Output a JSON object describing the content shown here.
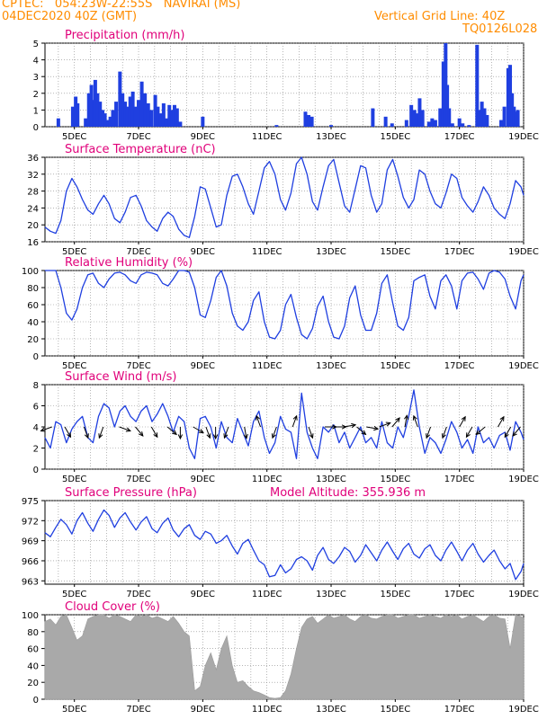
{
  "header": {
    "station": "CPTEC:   054:23W-22:55S   NAVIRAI (MS)",
    "run_time": "04DEC2020 40Z (GMT)",
    "grid_note": "Vertical Grid Line: 40Z",
    "code": "TQ0126L028"
  },
  "colors": {
    "header_text": "#ff8c00",
    "panel_title": "#e0007a",
    "series_line": "#1f3fe0",
    "bars": "#1f3fe0",
    "cloud_fill": "#a9a9a9",
    "wind_arrow": "#000000",
    "grid": "#888888"
  },
  "x_axis": {
    "tick_labels": [
      "5DEC",
      "7DEC",
      "9DEC",
      "11DEC",
      "13DEC",
      "15DEC",
      "17DEC",
      "19DEC"
    ],
    "range_days": [
      4.083,
      19.0
    ]
  },
  "chart_data": [
    {
      "id": "precip",
      "type": "bar",
      "title": "Precipitation (mm/h)",
      "ylim": [
        0,
        5
      ],
      "yticks": [
        0,
        1,
        2,
        3,
        4,
        5
      ],
      "grid": true,
      "x_day": [
        4.5,
        4.95,
        5.04,
        5.1,
        5.35,
        5.45,
        5.53,
        5.6,
        5.65,
        5.72,
        5.8,
        5.88,
        5.95,
        6.05,
        6.12,
        6.2,
        6.3,
        6.42,
        6.5,
        6.58,
        6.66,
        6.74,
        6.82,
        6.9,
        7.0,
        7.1,
        7.2,
        7.3,
        7.4,
        7.52,
        7.6,
        7.7,
        7.78,
        7.86,
        7.96,
        8.06,
        8.12,
        8.2,
        8.3,
        9.0,
        11.3,
        12.2,
        12.3,
        12.4,
        13.0,
        14.3,
        14.7,
        14.9,
        15.35,
        15.5,
        15.6,
        15.68,
        15.76,
        15.85,
        16.05,
        16.15,
        16.25,
        16.4,
        16.5,
        16.57,
        16.62,
        16.68,
        16.78,
        17.0,
        17.1,
        17.3,
        17.55,
        17.62,
        17.7,
        17.78,
        17.86,
        18.3,
        18.4,
        18.52,
        18.58,
        18.64,
        18.7,
        18.76,
        18.82
      ],
      "values": [
        0.5,
        1.2,
        1.8,
        1.4,
        0.5,
        2.0,
        2.5,
        1.6,
        2.8,
        2.0,
        1.5,
        1.0,
        0.8,
        0.4,
        0.6,
        1.0,
        1.5,
        3.3,
        2.0,
        1.5,
        1.2,
        1.8,
        2.1,
        1.2,
        1.6,
        2.7,
        2.0,
        1.4,
        1.0,
        1.9,
        1.2,
        0.8,
        1.4,
        0.5,
        1.3,
        1.0,
        1.3,
        1.1,
        0.3,
        0.6,
        0.1,
        0.9,
        0.7,
        0.6,
        0.1,
        1.1,
        0.6,
        0.2,
        0.4,
        1.3,
        1.0,
        0.8,
        1.7,
        1.0,
        0.3,
        0.5,
        0.4,
        1.1,
        3.9,
        5.0,
        2.5,
        1.1,
        0.2,
        0.5,
        0.2,
        0.1,
        4.9,
        1.0,
        1.5,
        1.1,
        0.7,
        0.4,
        1.2,
        3.5,
        3.7,
        2.0,
        1.2,
        0.9,
        1.0
      ]
    },
    {
      "id": "temperature",
      "type": "line",
      "title": "Surface Temperature (nC)",
      "ylim": [
        16,
        36
      ],
      "yticks": [
        16,
        20,
        24,
        28,
        32,
        36
      ],
      "grid": true,
      "x": [
        4.08,
        4.25,
        4.42,
        4.58,
        4.75,
        4.92,
        5.08,
        5.25,
        5.42,
        5.58,
        5.75,
        5.92,
        6.08,
        6.25,
        6.42,
        6.58,
        6.75,
        6.92,
        7.08,
        7.25,
        7.42,
        7.58,
        7.75,
        7.92,
        8.08,
        8.25,
        8.42,
        8.58,
        8.75,
        8.92,
        9.08,
        9.25,
        9.42,
        9.58,
        9.75,
        9.92,
        10.08,
        10.25,
        10.42,
        10.58,
        10.75,
        10.92,
        11.08,
        11.25,
        11.42,
        11.58,
        11.75,
        11.92,
        12.08,
        12.25,
        12.42,
        12.58,
        12.75,
        12.92,
        13.08,
        13.25,
        13.42,
        13.58,
        13.75,
        13.92,
        14.08,
        14.25,
        14.42,
        14.58,
        14.75,
        14.92,
        15.08,
        15.25,
        15.42,
        15.58,
        15.75,
        15.92,
        16.08,
        16.25,
        16.42,
        16.58,
        16.75,
        16.92,
        17.08,
        17.25,
        17.42,
        17.58,
        17.75,
        17.92,
        18.08,
        18.25,
        18.42,
        18.58,
        18.75,
        18.92,
        19.0
      ],
      "y": [
        19.5,
        18.5,
        18.0,
        21.0,
        28.0,
        31.0,
        29.0,
        26.0,
        23.5,
        22.5,
        25.0,
        27.0,
        25.0,
        21.5,
        20.5,
        23.0,
        26.5,
        27.0,
        24.5,
        21.0,
        19.5,
        18.5,
        21.5,
        23.0,
        22.0,
        19.0,
        17.5,
        17.0,
        22.0,
        29.0,
        28.5,
        24.0,
        19.5,
        20.0,
        27.0,
        31.5,
        32.0,
        29.0,
        25.0,
        22.5,
        28.0,
        33.5,
        35.0,
        32.0,
        26.0,
        23.5,
        27.5,
        34.5,
        36.0,
        32.0,
        25.5,
        23.5,
        29.0,
        34.0,
        35.5,
        30.0,
        24.5,
        23.0,
        28.5,
        34.0,
        33.5,
        27.0,
        23.0,
        25.0,
        33.0,
        35.5,
        31.5,
        26.5,
        24.0,
        26.0,
        33.0,
        32.0,
        28.0,
        25.0,
        24.0,
        27.5,
        32.0,
        31.0,
        26.5,
        24.5,
        23.0,
        25.5,
        29.0,
        27.0,
        24.0,
        22.5,
        21.5,
        25.0,
        30.5,
        29.0,
        27.0
      ]
    },
    {
      "id": "humidity",
      "type": "line",
      "title": "Relative Humidity (%)",
      "ylim": [
        0,
        100
      ],
      "yticks": [
        0,
        20,
        40,
        60,
        80,
        100
      ],
      "grid": true,
      "x": [
        4.08,
        4.25,
        4.42,
        4.58,
        4.75,
        4.92,
        5.08,
        5.25,
        5.42,
        5.58,
        5.75,
        5.92,
        6.08,
        6.25,
        6.42,
        6.58,
        6.75,
        6.92,
        7.08,
        7.25,
        7.42,
        7.58,
        7.75,
        7.92,
        8.08,
        8.25,
        8.42,
        8.58,
        8.75,
        8.92,
        9.08,
        9.25,
        9.42,
        9.58,
        9.75,
        9.92,
        10.08,
        10.25,
        10.42,
        10.58,
        10.75,
        10.92,
        11.08,
        11.25,
        11.42,
        11.58,
        11.75,
        11.92,
        12.08,
        12.25,
        12.42,
        12.58,
        12.75,
        12.92,
        13.08,
        13.25,
        13.42,
        13.58,
        13.75,
        13.92,
        14.08,
        14.25,
        14.42,
        14.58,
        14.75,
        14.92,
        15.08,
        15.25,
        15.42,
        15.58,
        15.75,
        15.92,
        16.08,
        16.25,
        16.42,
        16.58,
        16.75,
        16.92,
        17.08,
        17.25,
        17.42,
        17.58,
        17.75,
        17.92,
        18.08,
        18.25,
        18.42,
        18.58,
        18.75,
        18.92,
        19.0
      ],
      "y": [
        100,
        100,
        100,
        80,
        50,
        42,
        55,
        80,
        95,
        97,
        85,
        80,
        90,
        97,
        98,
        95,
        88,
        85,
        95,
        98,
        97,
        95,
        85,
        82,
        90,
        100,
        100,
        98,
        80,
        48,
        45,
        65,
        92,
        100,
        82,
        50,
        35,
        30,
        40,
        65,
        75,
        40,
        22,
        20,
        30,
        60,
        72,
        45,
        25,
        20,
        32,
        58,
        70,
        40,
        22,
        20,
        35,
        68,
        82,
        48,
        30,
        30,
        50,
        85,
        95,
        62,
        35,
        30,
        45,
        88,
        92,
        95,
        70,
        55,
        88,
        95,
        82,
        55,
        88,
        97,
        98,
        90,
        78,
        97,
        100,
        98,
        90,
        70,
        55,
        88,
        95
      ]
    },
    {
      "id": "wind",
      "type": "line",
      "title": "Surface Wind (m/s)",
      "ylim": [
        0,
        8
      ],
      "yticks": [
        0,
        2,
        4,
        6,
        8
      ],
      "grid": true,
      "x": [
        4.08,
        4.25,
        4.42,
        4.58,
        4.75,
        4.92,
        5.08,
        5.25,
        5.42,
        5.58,
        5.75,
        5.92,
        6.08,
        6.25,
        6.42,
        6.58,
        6.75,
        6.92,
        7.08,
        7.25,
        7.42,
        7.58,
        7.75,
        7.92,
        8.08,
        8.25,
        8.42,
        8.58,
        8.75,
        8.92,
        9.08,
        9.25,
        9.42,
        9.58,
        9.75,
        9.92,
        10.08,
        10.25,
        10.42,
        10.58,
        10.75,
        10.92,
        11.08,
        11.25,
        11.42,
        11.58,
        11.75,
        11.92,
        12.08,
        12.25,
        12.42,
        12.58,
        12.75,
        12.92,
        13.08,
        13.25,
        13.42,
        13.58,
        13.75,
        13.92,
        14.08,
        14.25,
        14.42,
        14.58,
        14.75,
        14.92,
        15.08,
        15.25,
        15.42,
        15.58,
        15.75,
        15.92,
        16.08,
        16.25,
        16.42,
        16.58,
        16.75,
        16.92,
        17.08,
        17.25,
        17.42,
        17.58,
        17.75,
        17.92,
        18.08,
        18.25,
        18.42,
        18.58,
        18.75,
        18.92,
        19.0
      ],
      "y": [
        3.0,
        2.0,
        4.5,
        4.2,
        2.5,
        3.8,
        4.5,
        5.0,
        3.0,
        2.5,
        5.0,
        6.2,
        5.8,
        4.0,
        5.5,
        6.0,
        5.0,
        4.5,
        5.5,
        6.0,
        4.5,
        5.2,
        6.2,
        5.0,
        3.5,
        5.0,
        4.5,
        2.0,
        1.0,
        4.8,
        5.0,
        4.0,
        2.0,
        4.5,
        3.0,
        2.5,
        4.8,
        3.5,
        2.2,
        4.5,
        5.5,
        3.0,
        1.5,
        2.5,
        5.0,
        3.8,
        3.5,
        1.0,
        7.2,
        3.5,
        2.0,
        1.0,
        4.0,
        3.5,
        4.2,
        2.5,
        3.5,
        2.0,
        3.0,
        4.0,
        2.5,
        3.0,
        2.0,
        4.5,
        2.5,
        2.0,
        4.0,
        3.0,
        5.0,
        7.5,
        4.0,
        1.5,
        3.0,
        2.5,
        1.5,
        2.8,
        4.5,
        3.5,
        2.0,
        2.8,
        1.5,
        4.0,
        2.5,
        3.0,
        2.0,
        3.2,
        3.5,
        1.8,
        4.5,
        3.5,
        2.8
      ],
      "arrows_deg": [
        {
          "x": 4.3,
          "dir": 250
        },
        {
          "x": 4.7,
          "dir": 150
        },
        {
          "x": 5.3,
          "dir": 160
        },
        {
          "x": 5.9,
          "dir": 200
        },
        {
          "x": 6.4,
          "dir": 110
        },
        {
          "x": 6.9,
          "dir": 140
        },
        {
          "x": 7.4,
          "dir": 150
        },
        {
          "x": 7.9,
          "dir": 130
        },
        {
          "x": 8.3,
          "dir": 180
        },
        {
          "x": 8.7,
          "dir": 120
        },
        {
          "x": 9.1,
          "dir": 160
        },
        {
          "x": 9.4,
          "dir": 180
        },
        {
          "x": 9.8,
          "dir": 200
        },
        {
          "x": 10.3,
          "dir": 170
        },
        {
          "x": 10.8,
          "dir": 340
        },
        {
          "x": 11.3,
          "dir": 200
        },
        {
          "x": 11.8,
          "dir": 20
        },
        {
          "x": 12.3,
          "dir": 160
        },
        {
          "x": 12.8,
          "dir": 90
        },
        {
          "x": 13.1,
          "dir": 90
        },
        {
          "x": 13.4,
          "dir": 80
        },
        {
          "x": 13.8,
          "dir": 130
        },
        {
          "x": 14.1,
          "dir": 100
        },
        {
          "x": 14.5,
          "dir": 70
        },
        {
          "x": 14.9,
          "dir": 40
        },
        {
          "x": 15.3,
          "dir": 10
        },
        {
          "x": 15.7,
          "dir": 340
        },
        {
          "x": 16.1,
          "dir": 200
        },
        {
          "x": 16.6,
          "dir": 200
        },
        {
          "x": 17.0,
          "dir": 30
        },
        {
          "x": 17.4,
          "dir": 210
        },
        {
          "x": 17.8,
          "dir": 230
        },
        {
          "x": 18.2,
          "dir": 30
        },
        {
          "x": 18.6,
          "dir": 210
        },
        {
          "x": 18.9,
          "dir": 220
        }
      ]
    },
    {
      "id": "pressure",
      "type": "line",
      "title": "Surface Pressure (hPa)",
      "subtitle": "Model Altitude: 355.936  m",
      "ylim": [
        962.5,
        975
      ],
      "yticks": [
        963,
        966,
        969,
        972,
        975
      ],
      "grid": true,
      "x": [
        4.08,
        4.25,
        4.42,
        4.58,
        4.75,
        4.92,
        5.08,
        5.25,
        5.42,
        5.58,
        5.75,
        5.92,
        6.08,
        6.25,
        6.42,
        6.58,
        6.75,
        6.92,
        7.08,
        7.25,
        7.42,
        7.58,
        7.75,
        7.92,
        8.08,
        8.25,
        8.42,
        8.58,
        8.75,
        8.92,
        9.08,
        9.25,
        9.42,
        9.58,
        9.75,
        9.92,
        10.08,
        10.25,
        10.42,
        10.58,
        10.75,
        10.92,
        11.08,
        11.25,
        11.42,
        11.58,
        11.75,
        11.92,
        12.08,
        12.25,
        12.42,
        12.58,
        12.75,
        12.92,
        13.08,
        13.25,
        13.42,
        13.58,
        13.75,
        13.92,
        14.08,
        14.25,
        14.42,
        14.58,
        14.75,
        14.92,
        15.08,
        15.25,
        15.42,
        15.58,
        15.75,
        15.92,
        16.08,
        16.25,
        16.42,
        16.58,
        16.75,
        16.92,
        17.08,
        17.25,
        17.42,
        17.58,
        17.75,
        17.92,
        18.08,
        18.25,
        18.42,
        18.58,
        18.75,
        18.92,
        19.0
      ],
      "y": [
        970.2,
        969.6,
        971.0,
        972.2,
        971.4,
        970.0,
        972.0,
        973.2,
        971.6,
        970.4,
        972.2,
        973.6,
        972.8,
        971.0,
        972.4,
        973.2,
        971.8,
        970.6,
        971.8,
        972.6,
        970.8,
        970.2,
        971.6,
        972.4,
        970.6,
        969.6,
        970.8,
        971.4,
        969.8,
        969.2,
        970.4,
        970.0,
        968.6,
        969.0,
        969.8,
        968.2,
        967.0,
        968.6,
        969.2,
        967.6,
        966.0,
        965.4,
        963.6,
        963.8,
        965.4,
        964.2,
        964.8,
        966.2,
        966.6,
        966.0,
        964.6,
        966.8,
        968.0,
        966.2,
        965.6,
        966.6,
        968.0,
        967.4,
        965.8,
        966.8,
        968.4,
        967.2,
        966.0,
        967.6,
        968.8,
        967.4,
        966.2,
        967.8,
        968.6,
        967.0,
        966.4,
        967.8,
        968.4,
        966.8,
        966.0,
        967.6,
        968.8,
        967.4,
        966.0,
        967.6,
        968.6,
        967.0,
        965.8,
        966.8,
        967.6,
        966.0,
        964.8,
        965.6,
        963.2,
        964.4,
        965.6
      ]
    },
    {
      "id": "cloud",
      "type": "area",
      "title": "Cloud Cover (%)",
      "ylim": [
        0,
        100
      ],
      "yticks": [
        0,
        20,
        40,
        60,
        80,
        100
      ],
      "grid": true,
      "x": [
        4.08,
        4.25,
        4.42,
        4.58,
        4.75,
        4.92,
        5.08,
        5.25,
        5.42,
        5.58,
        5.75,
        5.92,
        6.08,
        6.25,
        6.42,
        6.58,
        6.75,
        6.92,
        7.08,
        7.25,
        7.42,
        7.58,
        7.75,
        7.92,
        8.08,
        8.25,
        8.42,
        8.58,
        8.75,
        8.92,
        9.08,
        9.25,
        9.42,
        9.58,
        9.75,
        9.92,
        10.08,
        10.25,
        10.42,
        10.58,
        10.75,
        10.92,
        11.08,
        11.25,
        11.42,
        11.58,
        11.75,
        11.92,
        12.08,
        12.25,
        12.42,
        12.58,
        12.75,
        12.92,
        13.08,
        13.25,
        13.42,
        13.58,
        13.75,
        13.92,
        14.08,
        14.25,
        14.42,
        14.58,
        14.75,
        14.92,
        15.08,
        15.25,
        15.42,
        15.58,
        15.75,
        15.92,
        16.08,
        16.25,
        16.42,
        16.58,
        16.75,
        16.92,
        17.08,
        17.25,
        17.42,
        17.58,
        17.75,
        17.92,
        18.08,
        18.25,
        18.42,
        18.58,
        18.75,
        18.92,
        19.0
      ],
      "y": [
        92,
        95,
        88,
        98,
        100,
        85,
        70,
        75,
        95,
        98,
        100,
        100,
        96,
        100,
        98,
        95,
        92,
        100,
        98,
        100,
        96,
        98,
        95,
        92,
        98,
        90,
        80,
        75,
        10,
        15,
        40,
        55,
        35,
        60,
        75,
        40,
        20,
        22,
        15,
        10,
        8,
        5,
        2,
        1,
        2,
        10,
        30,
        60,
        85,
        95,
        98,
        90,
        95,
        100,
        96,
        98,
        100,
        95,
        92,
        98,
        100,
        96,
        95,
        98,
        100,
        100,
        96,
        98,
        100,
        100,
        96,
        98,
        100,
        98,
        96,
        100,
        98,
        100,
        95,
        98,
        100,
        96,
        92,
        98,
        100,
        96,
        95,
        60,
        100,
        98,
        96
      ]
    }
  ]
}
